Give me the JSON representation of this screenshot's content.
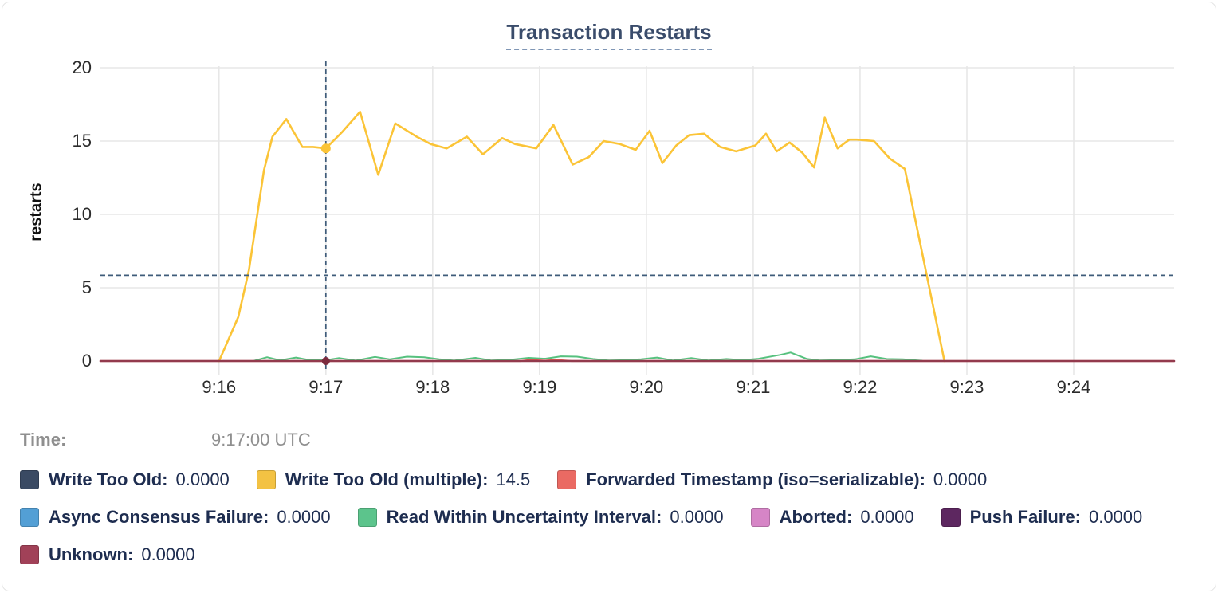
{
  "title": "Transaction Restarts",
  "tooltip": {
    "time_label": "Time:",
    "time_value": "9:17:00 UTC"
  },
  "colors": {
    "grid": "#e7e7e7",
    "crosshair": "#3f5c7a",
    "axis_text": "#2b2b2b",
    "legend_text": "#1e2d50",
    "title_text": "#3a4c6b"
  },
  "legend": {
    "rows": [
      [
        {
          "label": "Write Too Old",
          "value": "0.0000",
          "color": "#3a4a63"
        },
        {
          "label": "Write Too Old (multiple)",
          "value": "14.5",
          "color": "#f3c243"
        },
        {
          "label": "Forwarded Timestamp (iso=serializable)",
          "value": "0.0000",
          "color": "#ea6a63"
        }
      ],
      [
        {
          "label": "Async Consensus Failure",
          "value": "0.0000",
          "color": "#539fd5"
        },
        {
          "label": "Read Within Uncertainty Interval",
          "value": "0.0000",
          "color": "#5cc48c"
        },
        {
          "label": "Aborted",
          "value": "0.0000",
          "color": "#d685c6"
        },
        {
          "label": "Push Failure",
          "value": "0.0000",
          "color": "#5d2760"
        }
      ],
      [
        {
          "label": "Unknown",
          "value": "0.0000",
          "color": "#a14158"
        }
      ]
    ]
  },
  "chart_data": {
    "type": "line",
    "title": "Transaction Restarts",
    "ylabel": "restarts",
    "ylim": [
      0,
      20
    ],
    "y_ticks": [
      0,
      5,
      10,
      15,
      20
    ],
    "x_domain_minutes": [
      14.89,
      24.94
    ],
    "x_ticks_minutes": [
      16,
      17,
      18,
      19,
      20,
      21,
      22,
      23,
      24
    ],
    "x_tick_labels": [
      "9:16",
      "9:17",
      "9:18",
      "9:19",
      "9:20",
      "9:21",
      "9:22",
      "9:23",
      "9:24"
    ],
    "grid": true,
    "legend_position": "bottom",
    "hover": {
      "x_minutes": 17,
      "time": "9:17:00 UTC",
      "value_line_y": 5.85,
      "points": [
        {
          "series": "Write Too Old (multiple)",
          "y": 14.5,
          "color": "#fbc437",
          "r": 6
        },
        {
          "series": "Unknown",
          "y": 0,
          "color": "#7b2b3e",
          "r": 5
        }
      ]
    },
    "series": [
      {
        "name": "Write Too Old",
        "color": "#3a4a63",
        "width": 2,
        "points": [
          [
            14.89,
            0
          ],
          [
            24.94,
            0
          ]
        ]
      },
      {
        "name": "Async Consensus Failure",
        "color": "#539fd5",
        "width": 2,
        "points": [
          [
            14.89,
            0
          ],
          [
            24.94,
            0
          ]
        ]
      },
      {
        "name": "Aborted",
        "color": "#d685c6",
        "width": 2,
        "points": [
          [
            14.89,
            0
          ],
          [
            24.94,
            0
          ]
        ]
      },
      {
        "name": "Push Failure",
        "color": "#5d2760",
        "width": 2,
        "points": [
          [
            14.89,
            0
          ],
          [
            24.94,
            0
          ]
        ]
      },
      {
        "name": "Forwarded Timestamp (iso=serializable)",
        "color": "#e25a52",
        "width": 2.2,
        "points": [
          [
            14.89,
            0
          ],
          [
            18.82,
            0
          ],
          [
            18.95,
            0.1
          ],
          [
            19.05,
            0.16
          ],
          [
            19.18,
            0.06
          ],
          [
            19.3,
            0
          ],
          [
            24.94,
            0
          ]
        ]
      },
      {
        "name": "Read Within Uncertainty Interval",
        "color": "#56c17e",
        "width": 2,
        "points": [
          [
            16.33,
            0.02
          ],
          [
            16.45,
            0.26
          ],
          [
            16.57,
            0.05
          ],
          [
            16.72,
            0.24
          ],
          [
            16.85,
            0.06
          ],
          [
            17.0,
            0.06
          ],
          [
            17.12,
            0.2
          ],
          [
            17.28,
            0.03
          ],
          [
            17.46,
            0.28
          ],
          [
            17.6,
            0.12
          ],
          [
            17.76,
            0.3
          ],
          [
            17.92,
            0.26
          ],
          [
            18.06,
            0.12
          ],
          [
            18.2,
            0.03
          ],
          [
            18.4,
            0.22
          ],
          [
            18.55,
            0.04
          ],
          [
            18.72,
            0.08
          ],
          [
            18.9,
            0.22
          ],
          [
            19.05,
            0.16
          ],
          [
            19.2,
            0.32
          ],
          [
            19.35,
            0.3
          ],
          [
            19.5,
            0.14
          ],
          [
            19.65,
            0.04
          ],
          [
            19.8,
            0.06
          ],
          [
            19.95,
            0.12
          ],
          [
            20.1,
            0.24
          ],
          [
            20.25,
            0.04
          ],
          [
            20.42,
            0.2
          ],
          [
            20.58,
            0.04
          ],
          [
            20.75,
            0.14
          ],
          [
            20.9,
            0.06
          ],
          [
            21.05,
            0.16
          ],
          [
            21.25,
            0.42
          ],
          [
            21.35,
            0.58
          ],
          [
            21.5,
            0.15
          ],
          [
            21.62,
            0.04
          ],
          [
            21.78,
            0.06
          ],
          [
            21.95,
            0.12
          ],
          [
            22.1,
            0.32
          ],
          [
            22.25,
            0.14
          ],
          [
            22.4,
            0.12
          ],
          [
            22.58,
            0.02
          ]
        ]
      },
      {
        "name": "Write Too Old (multiple)",
        "color": "#fbc437",
        "width": 2.6,
        "points": [
          [
            16.0,
            0
          ],
          [
            16.18,
            3.0
          ],
          [
            16.28,
            6.2
          ],
          [
            16.42,
            13.0
          ],
          [
            16.5,
            15.3
          ],
          [
            16.63,
            16.5
          ],
          [
            16.78,
            14.6
          ],
          [
            16.88,
            14.6
          ],
          [
            17.0,
            14.5
          ],
          [
            17.15,
            15.6
          ],
          [
            17.32,
            17.0
          ],
          [
            17.49,
            12.7
          ],
          [
            17.65,
            16.2
          ],
          [
            17.85,
            15.3
          ],
          [
            17.98,
            14.8
          ],
          [
            18.13,
            14.5
          ],
          [
            18.32,
            15.3
          ],
          [
            18.47,
            14.1
          ],
          [
            18.65,
            15.2
          ],
          [
            18.77,
            14.8
          ],
          [
            18.97,
            14.5
          ],
          [
            19.13,
            16.1
          ],
          [
            19.31,
            13.4
          ],
          [
            19.46,
            13.9
          ],
          [
            19.6,
            15.0
          ],
          [
            19.75,
            14.8
          ],
          [
            19.9,
            14.4
          ],
          [
            20.03,
            15.7
          ],
          [
            20.15,
            13.5
          ],
          [
            20.28,
            14.7
          ],
          [
            20.4,
            15.4
          ],
          [
            20.54,
            15.5
          ],
          [
            20.69,
            14.6
          ],
          [
            20.84,
            14.3
          ],
          [
            21.02,
            14.7
          ],
          [
            21.12,
            15.5
          ],
          [
            21.22,
            14.3
          ],
          [
            21.34,
            14.9
          ],
          [
            21.46,
            14.2
          ],
          [
            21.57,
            13.2
          ],
          [
            21.67,
            16.6
          ],
          [
            21.79,
            14.5
          ],
          [
            21.9,
            15.1
          ],
          [
            21.97,
            15.1
          ],
          [
            22.13,
            15.0
          ],
          [
            22.28,
            13.8
          ],
          [
            22.42,
            13.1
          ],
          [
            22.79,
            0
          ]
        ]
      },
      {
        "name": "Unknown",
        "color": "#933a4d",
        "width": 2.6,
        "points": [
          [
            14.89,
            0
          ],
          [
            24.94,
            0
          ]
        ]
      }
    ]
  }
}
